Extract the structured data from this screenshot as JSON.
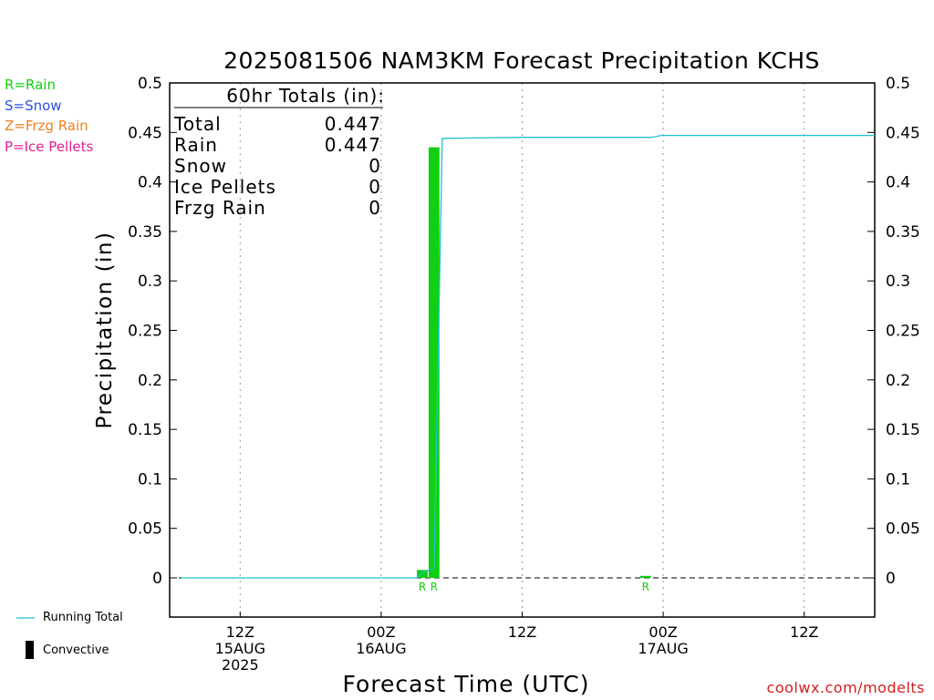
{
  "title": "2025081506 NAM3KM Forecast Precipitation KCHS",
  "watermark": "coolwx.com/modelts",
  "type_legend": [
    {
      "label": "R=Rain",
      "color": "#10d010"
    },
    {
      "label": "S=Snow",
      "color": "#3050e0"
    },
    {
      "label": "Z=Frzg Rain",
      "color": "#f08020"
    },
    {
      "label": "P=Ice Pellets",
      "color": "#e02090"
    }
  ],
  "bottom_legend": {
    "running_total_label": "Running Total",
    "running_total_color": "#20c0d0",
    "convective_label": "Convective"
  },
  "totals": {
    "header": "60hr Totals (in):",
    "rows": [
      {
        "label": "Total",
        "value": "0.447"
      },
      {
        "label": "Rain",
        "value": "0.447"
      },
      {
        "label": "Snow",
        "value": "0"
      },
      {
        "label": "Ice Pellets",
        "value": "0"
      },
      {
        "label": "Frzg Rain",
        "value": "0"
      }
    ]
  },
  "chart_data": {
    "type": "bar",
    "xlabel": "Forecast Time (UTC)",
    "ylabel": "Precipitation (in)",
    "ylim": [
      0,
      0.5
    ],
    "xlim_hours": [
      6,
      66
    ],
    "yticks": [
      "0",
      "0.05",
      "0.1",
      "0.15",
      "0.2",
      "0.25",
      "0.3",
      "0.35",
      "0.4",
      "0.45",
      "0.5"
    ],
    "xticks": [
      {
        "hour": 12,
        "lines": [
          "12Z",
          "15AUG",
          "2025"
        ]
      },
      {
        "hour": 24,
        "lines": [
          "00Z",
          "16AUG"
        ]
      },
      {
        "hour": 36,
        "lines": [
          "12Z"
        ]
      },
      {
        "hour": 48,
        "lines": [
          "00Z",
          "17AUG"
        ]
      },
      {
        "hour": 60,
        "lines": [
          "12Z"
        ]
      }
    ],
    "grid": "vertical dotted",
    "bar_color": "#10d010",
    "bars": [
      {
        "hour": 28,
        "value": 0.008,
        "type_label": "R"
      },
      {
        "hour": 29,
        "value": 0.435,
        "type_label": "R"
      },
      {
        "hour": 47,
        "value": 0.002,
        "type_label": "R"
      }
    ],
    "running_total": {
      "x": [
        7,
        27,
        27.5,
        28.5,
        29.2,
        36,
        47,
        47.8,
        66
      ],
      "y": [
        0,
        0,
        0.005,
        0.01,
        0.444,
        0.445,
        0.445,
        0.447,
        0.447
      ]
    }
  }
}
